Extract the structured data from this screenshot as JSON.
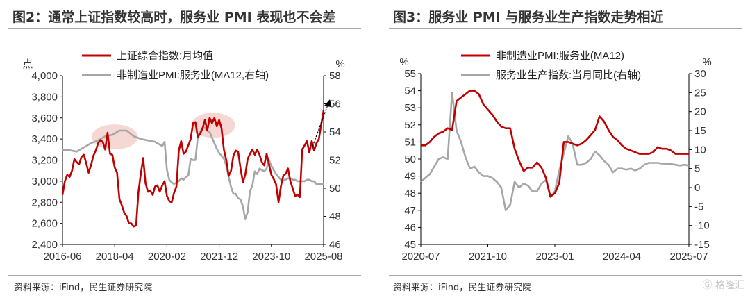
{
  "charts": {
    "left_title": "图2：通常上证指数较高时，服务业 PMI 表现也不会差",
    "right_title": "图3：服务业 PMI 与服务业生产指数走势相近"
  },
  "footer": {
    "left_source": "资料来源：iFind，民生证券研究院",
    "right_source": "资料来源：iFind，民生证券研究院",
    "watermark": "格隆汇"
  },
  "chart_data": [
    {
      "type": "line",
      "title": "图2：通常上证指数较高时，服务业 PMI 表现也不会差",
      "y_left_unit": "点",
      "y_right_unit": "%",
      "ylim_left": [
        2400,
        4000
      ],
      "yticks_left": [
        "2,400",
        "2,600",
        "2,800",
        "3,000",
        "3,200",
        "3,400",
        "3,600",
        "3,800",
        "4,000"
      ],
      "ylim_right": [
        46,
        58
      ],
      "yticks_right": [
        "46",
        "48",
        "50",
        "52",
        "54",
        "56",
        "58"
      ],
      "x_range": [
        "2016-06",
        "2025-08"
      ],
      "x_ticks": [
        "2016-06",
        "2018-04",
        "2020-02",
        "2021-12",
        "2023-10",
        "2025-08"
      ],
      "legend_position": "top",
      "series": [
        {
          "name": "上证综合指数:月均值",
          "axis": "left",
          "color": "#c00000",
          "x": [
            "2016-06",
            "2016-07",
            "2016-08",
            "2016-09",
            "2016-10",
            "2016-11",
            "2016-12",
            "2017-01",
            "2017-02",
            "2017-03",
            "2017-04",
            "2017-05",
            "2017-06",
            "2017-07",
            "2017-08",
            "2017-09",
            "2017-10",
            "2017-11",
            "2017-12",
            "2018-01",
            "2018-02",
            "2018-03",
            "2018-04",
            "2018-05",
            "2018-06",
            "2018-07",
            "2018-08",
            "2018-09",
            "2018-10",
            "2018-11",
            "2018-12",
            "2019-01",
            "2019-02",
            "2019-03",
            "2019-04",
            "2019-05",
            "2019-06",
            "2019-07",
            "2019-08",
            "2019-09",
            "2019-10",
            "2019-11",
            "2019-12",
            "2020-01",
            "2020-02",
            "2020-03",
            "2020-04",
            "2020-05",
            "2020-06",
            "2020-07",
            "2020-08",
            "2020-09",
            "2020-10",
            "2020-11",
            "2020-12",
            "2021-01",
            "2021-02",
            "2021-03",
            "2021-04",
            "2021-05",
            "2021-06",
            "2021-07",
            "2021-08",
            "2021-09",
            "2021-10",
            "2021-11",
            "2021-12",
            "2022-01",
            "2022-02",
            "2022-03",
            "2022-04",
            "2022-05",
            "2022-06",
            "2022-07",
            "2022-08",
            "2022-09",
            "2022-10",
            "2022-11",
            "2022-12",
            "2023-01",
            "2023-02",
            "2023-03",
            "2023-04",
            "2023-05",
            "2023-06",
            "2023-07",
            "2023-08",
            "2023-09",
            "2023-10",
            "2023-11",
            "2023-12",
            "2024-01",
            "2024-02",
            "2024-03",
            "2024-04",
            "2024-05",
            "2024-06",
            "2024-07",
            "2024-08",
            "2024-09",
            "2024-10",
            "2024-11",
            "2024-12",
            "2025-01",
            "2025-02",
            "2025-03",
            "2025-04",
            "2025-05",
            "2025-06",
            "2025-07",
            "2025-08"
          ],
          "y": [
            2870,
            3000,
            3060,
            3040,
            3100,
            3210,
            3180,
            3160,
            3230,
            3250,
            3170,
            3080,
            3150,
            3240,
            3290,
            3360,
            3390,
            3370,
            3300,
            3460,
            3260,
            3250,
            3130,
            3080,
            2830,
            2770,
            2700,
            2670,
            2600,
            2600,
            2570,
            2580,
            2900,
            3070,
            3220,
            2980,
            2900,
            2910,
            2870,
            2950,
            2960,
            2900,
            2960,
            3000,
            2860,
            2810,
            2800,
            2890,
            2950,
            3290,
            3380,
            3260,
            3280,
            3340,
            3400,
            3550,
            3560,
            3420,
            3450,
            3500,
            3580,
            3480,
            3600,
            3550,
            3600,
            3520,
            3580,
            3500,
            3300,
            3200,
            3050,
            3100,
            3240,
            3290,
            3280,
            3120,
            2990,
            3060,
            3210,
            3260,
            3300,
            3250,
            3300,
            3250,
            3180,
            3150,
            3260,
            3160,
            3060,
            3020,
            2970,
            2800,
            2950,
            3050,
            3070,
            3120,
            3000,
            2930,
            2860,
            2870,
            2850,
            3300,
            3340,
            3380,
            3270,
            3380,
            3290,
            3360,
            3400,
            3540,
            3670
          ]
        },
        {
          "name": "非制造业PMI:服务业(MA12,右轴)",
          "axis": "right",
          "color": "#a6a6a6",
          "x": [
            "2016-06",
            "2016-09",
            "2016-12",
            "2017-03",
            "2017-06",
            "2017-09",
            "2017-12",
            "2018-03",
            "2018-06",
            "2018-09",
            "2018-12",
            "2019-03",
            "2019-06",
            "2019-09",
            "2019-12",
            "2020-01",
            "2020-02",
            "2020-03",
            "2020-04",
            "2020-05",
            "2020-06",
            "2020-07",
            "2020-08",
            "2020-09",
            "2020-10",
            "2020-11",
            "2020-12",
            "2021-01",
            "2021-02",
            "2021-03",
            "2021-04",
            "2021-05",
            "2021-06",
            "2021-07",
            "2021-08",
            "2021-09",
            "2021-10",
            "2021-11",
            "2021-12",
            "2022-01",
            "2022-02",
            "2022-03",
            "2022-04",
            "2022-05",
            "2022-06",
            "2022-07",
            "2022-08",
            "2022-09",
            "2022-10",
            "2022-11",
            "2022-12",
            "2023-01",
            "2023-02",
            "2023-03",
            "2023-04",
            "2023-05",
            "2023-06",
            "2023-07",
            "2023-08",
            "2023-09",
            "2023-10",
            "2023-11",
            "2023-12",
            "2024-01",
            "2024-02",
            "2024-03",
            "2024-04",
            "2024-05",
            "2024-06",
            "2024-07",
            "2024-08",
            "2024-09",
            "2024-10",
            "2024-11",
            "2024-12",
            "2025-01",
            "2025-02",
            "2025-03",
            "2025-04",
            "2025-05",
            "2025-06",
            "2025-07",
            "2025-08"
          ],
          "y": [
            52.7,
            52.7,
            52.6,
            52.9,
            53.2,
            53.4,
            53.7,
            53.8,
            54.1,
            54.1,
            53.7,
            53.5,
            53.4,
            53.3,
            53.0,
            53.3,
            51.3,
            50.6,
            50.4,
            50.3,
            50.4,
            50.5,
            50.7,
            50.6,
            50.8,
            50.9,
            52.1,
            52.0,
            52.0,
            53.6,
            54.0,
            54.3,
            54.3,
            54.1,
            54.0,
            53.6,
            53.2,
            52.8,
            52.5,
            52.3,
            52.1,
            51.6,
            50.8,
            50.1,
            49.6,
            49.6,
            49.3,
            49.2,
            48.7,
            47.8,
            48.3,
            49.8,
            50.2,
            51.2,
            51.0,
            51.4,
            51.3,
            51.2,
            51.4,
            52.0,
            51.6,
            51.3,
            51.0,
            50.8,
            50.6,
            50.6,
            50.6,
            50.7,
            50.7,
            50.6,
            50.6,
            50.5,
            50.5,
            50.5,
            50.5,
            50.6,
            50.6,
            50.5,
            50.5,
            50.3,
            50.3,
            50.3,
            50.3
          ]
        }
      ],
      "highlights": [
        "2017-08 ~ 2018-12",
        "2021-02 ~ 2022-05"
      ],
      "annotation": "arrow to 2025-08 at 3670"
    },
    {
      "type": "line",
      "title": "图3：服务业 PMI 与服务业生产指数走势相近",
      "y_left_unit": "%",
      "y_right_unit": "%",
      "ylim_left": [
        45,
        55
      ],
      "yticks_left": [
        "45",
        "46",
        "47",
        "48",
        "49",
        "50",
        "51",
        "52",
        "53",
        "54",
        "55"
      ],
      "ylim_right": [
        -15,
        30
      ],
      "yticks_right": [
        "-15",
        "-10",
        "-5",
        "0",
        "5",
        "10",
        "15",
        "20",
        "25",
        "30"
      ],
      "x_range": [
        "2020-07",
        "2025-07"
      ],
      "x_ticks": [
        "2020-07",
        "2021-10",
        "2023-01",
        "2024-04",
        "2025-07"
      ],
      "legend_position": "top",
      "series": [
        {
          "name": "非制造业PMI:服务业(MA12)",
          "axis": "left",
          "color": "#c00000",
          "x": [
            "2020-07",
            "2020-08",
            "2020-09",
            "2020-10",
            "2020-11",
            "2020-12",
            "2021-01",
            "2021-02",
            "2021-03",
            "2021-04",
            "2021-05",
            "2021-06",
            "2021-07",
            "2021-08",
            "2021-09",
            "2021-10",
            "2021-11",
            "2021-12",
            "2022-01",
            "2022-02",
            "2022-03",
            "2022-04",
            "2022-05",
            "2022-06",
            "2022-07",
            "2022-08",
            "2022-09",
            "2022-10",
            "2022-11",
            "2022-12",
            "2023-01",
            "2023-02",
            "2023-03",
            "2023-04",
            "2023-05",
            "2023-06",
            "2023-07",
            "2023-08",
            "2023-09",
            "2023-10",
            "2023-11",
            "2023-12",
            "2024-01",
            "2024-02",
            "2024-03",
            "2024-04",
            "2024-05",
            "2024-06",
            "2024-07",
            "2024-08",
            "2024-09",
            "2024-10",
            "2024-11",
            "2024-12",
            "2025-01",
            "2025-02",
            "2025-03",
            "2025-04",
            "2025-05",
            "2025-06",
            "2025-07"
          ],
          "y": [
            50.8,
            50.8,
            51.0,
            51.3,
            51.5,
            51.6,
            51.8,
            51.7,
            53.4,
            53.6,
            53.8,
            54.0,
            54.0,
            53.8,
            53.2,
            52.9,
            52.6,
            52.2,
            51.9,
            51.8,
            51.8,
            50.6,
            49.9,
            49.3,
            49.5,
            49.5,
            49.8,
            49.5,
            48.9,
            47.8,
            48.0,
            48.6,
            51.0,
            51.0,
            50.9,
            50.8,
            50.9,
            51.1,
            51.4,
            51.7,
            52.5,
            52.2,
            51.7,
            51.3,
            51.1,
            50.8,
            50.6,
            50.5,
            50.4,
            50.3,
            50.3,
            50.3,
            50.4,
            50.7,
            50.6,
            50.6,
            50.5,
            50.3,
            50.3,
            50.3,
            50.3
          ]
        },
        {
          "name": "服务业生产指数:当月同比(右轴)",
          "axis": "right",
          "color": "#a6a6a6",
          "x": [
            "2020-07",
            "2020-08",
            "2020-09",
            "2020-10",
            "2020-11",
            "2020-12",
            "2021-01",
            "2021-02",
            "2021-03",
            "2021-04",
            "2021-05",
            "2021-06",
            "2021-07",
            "2021-08",
            "2021-09",
            "2021-10",
            "2021-11",
            "2021-12",
            "2022-01",
            "2022-02",
            "2022-03",
            "2022-04",
            "2022-05",
            "2022-06",
            "2022-07",
            "2022-08",
            "2022-09",
            "2022-10",
            "2022-11",
            "2022-12",
            "2023-01",
            "2023-02",
            "2023-03",
            "2023-04",
            "2023-05",
            "2023-06",
            "2023-07",
            "2023-08",
            "2023-09",
            "2023-10",
            "2023-11",
            "2023-12",
            "2024-01",
            "2024-02",
            "2024-03",
            "2024-04",
            "2024-05",
            "2024-06",
            "2024-07",
            "2024-08",
            "2024-09",
            "2024-10",
            "2024-11",
            "2024-12",
            "2025-01",
            "2025-02",
            "2025-03",
            "2025-04",
            "2025-05",
            "2025-06",
            "2025-07"
          ],
          "y": [
            1.5,
            2.5,
            3.5,
            5.5,
            7.5,
            8.0,
            7.5,
            25.0,
            15.0,
            12.0,
            8.0,
            5.0,
            5.5,
            4.0,
            3.0,
            3.0,
            2.5,
            1.5,
            0.0,
            -6.0,
            -4.5,
            1.5,
            0.0,
            1.0,
            0.5,
            -1.0,
            -1.0,
            1.0,
            2.0,
            -2.5,
            -1.0,
            4.5,
            9.0,
            13.5,
            11.5,
            6.0,
            6.0,
            6.5,
            7.5,
            9.5,
            8.5,
            7.0,
            6.0,
            4.0,
            5.0,
            5.0,
            4.7,
            5.0,
            4.5,
            5.0,
            6.0,
            6.5,
            6.5,
            6.5,
            6.3,
            6.3,
            6.2,
            6.0,
            5.8,
            6.0,
            5.8
          ]
        }
      ]
    }
  ]
}
